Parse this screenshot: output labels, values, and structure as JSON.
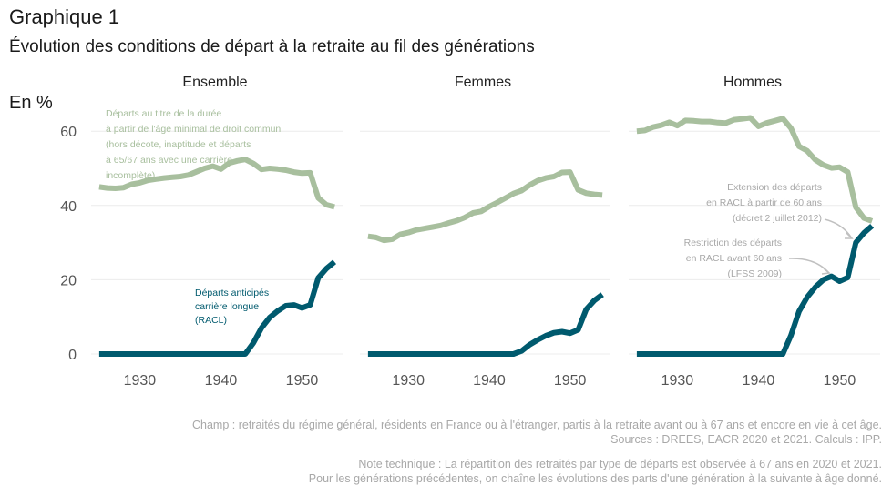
{
  "title": "Graphique 1",
  "subtitle": "Évolution des conditions de départ à la retraite au fil des générations",
  "unit": "En %",
  "colors": {
    "duree": "#a8bf9e",
    "racl": "#005a6e",
    "grid": "#ececec",
    "axis_text": "#555555",
    "annotation": "#a8a8a8"
  },
  "chart_data": {
    "type": "line",
    "ylim": [
      0,
      65
    ],
    "yticks": [
      "0",
      "20",
      "40",
      "60"
    ],
    "xticks": [
      "1930",
      "1940",
      "1950"
    ],
    "panels": [
      {
        "name": "Ensemble",
        "annotations": {
          "duree": [
            "Départs au titre de la durée",
            "à partir de l'âge minimal de droit commun",
            "(hors décote, inaptitude et départs",
            "à 65/67 ans avec une carrière",
            "incomplète)"
          ],
          "racl": [
            "Départs anticipés",
            "carrière longue",
            "(RACL)"
          ]
        },
        "series": [
          {
            "key": "duree",
            "x": [
              1925,
              1926,
              1927,
              1928,
              1929,
              1930,
              1931,
              1932,
              1933,
              1934,
              1935,
              1936,
              1937,
              1938,
              1939,
              1940,
              1941,
              1942,
              1943,
              1944,
              1945,
              1946,
              1947,
              1948,
              1949,
              1950,
              1951,
              1952,
              1953,
              1954
            ],
            "y": [
              45,
              44.7,
              44.6,
              44.8,
              45.7,
              46.1,
              46.8,
              47.1,
              47.4,
              47.6,
              47.8,
              48.2,
              49.1,
              50,
              50.6,
              49.8,
              51.4,
              52,
              52.4,
              51.3,
              49.7,
              50,
              49.8,
              49.5,
              49,
              48.7,
              48.8,
              42,
              40.2,
              39.6
            ]
          },
          {
            "key": "racl",
            "x": [
              1925,
              1926,
              1927,
              1928,
              1929,
              1930,
              1931,
              1932,
              1933,
              1934,
              1935,
              1936,
              1937,
              1938,
              1939,
              1940,
              1941,
              1942,
              1943,
              1944,
              1945,
              1946,
              1947,
              1948,
              1949,
              1950,
              1951,
              1952,
              1953,
              1954
            ],
            "y": [
              0,
              0,
              0,
              0,
              0,
              0,
              0,
              0,
              0,
              0,
              0,
              0,
              0,
              0,
              0,
              0,
              0,
              0,
              0,
              3,
              7,
              9.8,
              11.6,
              13,
              13.2,
              12.4,
              13.2,
              20.5,
              23,
              24.8
            ]
          }
        ]
      },
      {
        "name": "Femmes",
        "series": [
          {
            "key": "duree",
            "x": [
              1925,
              1926,
              1927,
              1928,
              1929,
              1930,
              1931,
              1932,
              1933,
              1934,
              1935,
              1936,
              1937,
              1938,
              1939,
              1940,
              1941,
              1942,
              1943,
              1944,
              1945,
              1946,
              1947,
              1948,
              1949,
              1950,
              1951,
              1952,
              1953,
              1954
            ],
            "y": [
              31.7,
              31.4,
              30.6,
              30.9,
              32.2,
              32.7,
              33.4,
              33.8,
              34.2,
              34.6,
              35.3,
              35.9,
              36.8,
              38,
              38.4,
              39.7,
              40.8,
              42,
              43.2,
              44,
              45.5,
              46.7,
              47.4,
              47.8,
              48.9,
              49,
              44.2,
              43.3,
              43,
              42.8
            ]
          },
          {
            "key": "racl",
            "x": [
              1925,
              1926,
              1927,
              1928,
              1929,
              1930,
              1931,
              1932,
              1933,
              1934,
              1935,
              1936,
              1937,
              1938,
              1939,
              1940,
              1941,
              1942,
              1943,
              1944,
              1945,
              1946,
              1947,
              1948,
              1949,
              1950,
              1951,
              1952,
              1953,
              1954
            ],
            "y": [
              0,
              0,
              0,
              0,
              0,
              0,
              0,
              0,
              0,
              0,
              0,
              0,
              0,
              0,
              0,
              0,
              0,
              0,
              0,
              0.8,
              2.5,
              3.8,
              4.9,
              5.7,
              6,
              5.6,
              6.5,
              12,
              14.4,
              16
            ]
          }
        ]
      },
      {
        "name": "Hommes",
        "annotations": {
          "extension": [
            "Extension des départs",
            "en RACL à partir de 60 ans",
            "(décret 2 juillet 2012)"
          ],
          "restriction": [
            "Restriction des départs",
            "en RACL avant 60 ans",
            "(LFSS 2009)"
          ]
        },
        "series": [
          {
            "key": "duree",
            "x": [
              1925,
              1926,
              1927,
              1928,
              1929,
              1930,
              1931,
              1932,
              1933,
              1934,
              1935,
              1936,
              1937,
              1938,
              1939,
              1940,
              1941,
              1942,
              1943,
              1944,
              1945,
              1946,
              1947,
              1948,
              1949,
              1950,
              1951,
              1952,
              1953,
              1954
            ],
            "y": [
              60,
              60.2,
              61.1,
              61.6,
              62.4,
              61.5,
              62.9,
              62.8,
              62.6,
              62.6,
              62.3,
              62.2,
              63.1,
              63.3,
              63.6,
              61.3,
              62.2,
              62.8,
              63.4,
              60.8,
              55.9,
              54.7,
              52.3,
              50.9,
              50.1,
              50.3,
              49,
              39.5,
              36.6,
              35.8
            ]
          },
          {
            "key": "racl",
            "x": [
              1925,
              1926,
              1927,
              1928,
              1929,
              1930,
              1931,
              1932,
              1933,
              1934,
              1935,
              1936,
              1937,
              1938,
              1939,
              1940,
              1941,
              1942,
              1943,
              1944,
              1945,
              1946,
              1947,
              1948,
              1949,
              1950,
              1951,
              1952,
              1953,
              1954
            ],
            "y": [
              0,
              0,
              0,
              0,
              0,
              0,
              0,
              0,
              0,
              0,
              0,
              0,
              0,
              0,
              0,
              0,
              0,
              0,
              0,
              5,
              11.5,
              15.3,
              18,
              20,
              20.9,
              19.6,
              20.6,
              30,
              32.6,
              34.5
            ]
          }
        ]
      }
    ]
  },
  "footnotes": {
    "champ": "Champ : retraités du régime général, résidents en France ou à l'étranger, partis à la retraite avant ou à 67 ans et encore en vie à cet âge.",
    "sources": "Sources : DREES, EACR 2020 et 2021. Calculs : IPP.",
    "note1": "Note technique : La répartition des retraités par type de départs est observée à 67 ans en  2020 et 2021.",
    "note2": "Pour les générations précédentes, on chaîne les évolutions des parts d'une génération à la suivante à âge donné."
  }
}
